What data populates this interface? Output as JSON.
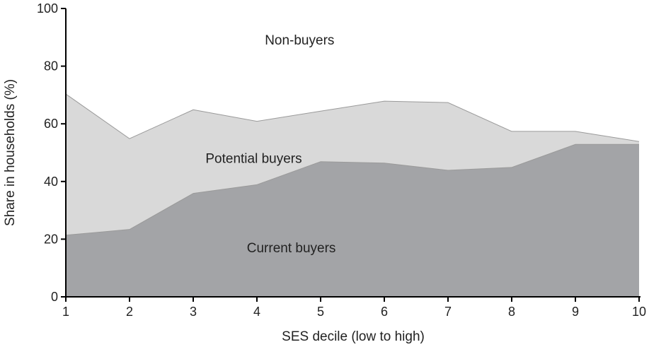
{
  "chart_data": {
    "type": "area",
    "stacked": true,
    "xlabel": "SES decile (low to high)",
    "ylabel": "Share in households (%)",
    "x": [
      1,
      2,
      3,
      4,
      5,
      6,
      7,
      8,
      9,
      10
    ],
    "xlim": [
      1,
      10
    ],
    "ylim": [
      0,
      100
    ],
    "yticks": [
      0,
      20,
      40,
      60,
      80,
      100
    ],
    "grid": false,
    "legend": "none",
    "series": [
      {
        "name": "Current buyers",
        "values": [
          21.5,
          23.5,
          36,
          39,
          47,
          46.5,
          44,
          45,
          53,
          53
        ],
        "color": "#a3a4a7"
      },
      {
        "name": "Potential buyers",
        "values": [
          49,
          31.5,
          29,
          22,
          17.5,
          21.5,
          23.5,
          12.5,
          4.5,
          1
        ],
        "color": "#d9d9d9"
      },
      {
        "name": "Non-buyers",
        "values": [
          29.5,
          45,
          35,
          39,
          35.5,
          32,
          32.5,
          42.5,
          42.5,
          46
        ],
        "color": "#ffffff"
      }
    ]
  }
}
